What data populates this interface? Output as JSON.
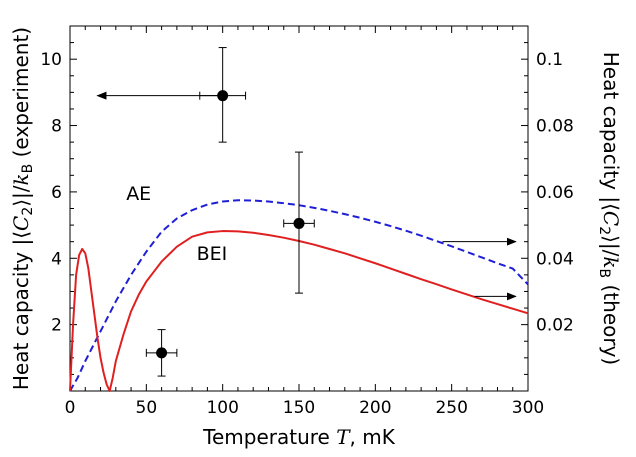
{
  "chart_data": {
    "type": "scatter",
    "xlabel": {
      "main": "Temperature ",
      "var": "T",
      "unit": ", mK"
    },
    "ylabel_left": {
      "pre": "Heat capacity |⟨",
      "var": "C",
      "sub2": "2",
      "mid": "⟩|/",
      "k": "k",
      "subB": "B",
      "post": " (experiment)"
    },
    "ylabel_right": {
      "pre": "Heat capacity |⟨",
      "var": "C",
      "sub2": "2",
      "mid": "⟩|/",
      "k": "k",
      "subB": "B",
      "post": " (theory)"
    },
    "xlim": [
      0,
      300
    ],
    "ylim_left": [
      0,
      11
    ],
    "ylim_right": [
      0,
      0.11
    ],
    "x_ticks": [
      0,
      50,
      100,
      150,
      200,
      250,
      300
    ],
    "y_left_ticks": [
      2,
      4,
      6,
      8,
      10
    ],
    "y_right_ticks": [
      0.02,
      0.04,
      0.06,
      0.08,
      0.1
    ],
    "y_right_tick_labels": [
      "0.02",
      "0.04",
      "0.06",
      "0.08",
      "0.1"
    ],
    "grid": false,
    "experiment": {
      "axis": "left",
      "points": [
        {
          "x": 60,
          "y": 1.15,
          "xerr": 10,
          "yerr_low": 0.7,
          "yerr_high": 0.7
        },
        {
          "x": 100,
          "y": 8.9,
          "xerr": 15,
          "yerr_low": 1.4,
          "yerr_high": 1.45
        },
        {
          "x": 150,
          "y": 5.05,
          "xerr": 10,
          "yerr_low": 2.1,
          "yerr_high": 2.15
        }
      ]
    },
    "series": [
      {
        "label": "AE",
        "axis": "right",
        "style": "dashed",
        "color": "#1f1fd6",
        "x": [
          0,
          5,
          10,
          20,
          30,
          40,
          50,
          60,
          70,
          80,
          90,
          100,
          110,
          120,
          130,
          140,
          150,
          160,
          170,
          180,
          190,
          200,
          210,
          220,
          230,
          240,
          250,
          260,
          270,
          280,
          290,
          300
        ],
        "y": [
          0.0,
          0.004,
          0.009,
          0.018,
          0.027,
          0.035,
          0.042,
          0.048,
          0.052,
          0.0545,
          0.0562,
          0.0571,
          0.0575,
          0.0574,
          0.0571,
          0.0566,
          0.056,
          0.0552,
          0.0543,
          0.0533,
          0.0522,
          0.051,
          0.0497,
          0.0483,
          0.0468,
          0.0452,
          0.0436,
          0.0419,
          0.0402,
          0.0385,
          0.0369,
          0.0321
        ]
      },
      {
        "label": "BEI",
        "axis": "right",
        "style": "solid",
        "color": "#e02020",
        "x": [
          0,
          2,
          4,
          6,
          8,
          10,
          12,
          14,
          16,
          18,
          20,
          22,
          24,
          26,
          28,
          30,
          35,
          40,
          45,
          50,
          55,
          60,
          70,
          80,
          90,
          100,
          110,
          120,
          130,
          140,
          150,
          160,
          170,
          180,
          190,
          200,
          210,
          220,
          230,
          240,
          250,
          260,
          270,
          280,
          290,
          300
        ],
        "y": [
          0.0,
          0.02,
          0.035,
          0.041,
          0.0428,
          0.0415,
          0.037,
          0.03,
          0.023,
          0.016,
          0.01,
          0.0055,
          0.002,
          0.0,
          0.004,
          0.009,
          0.017,
          0.024,
          0.029,
          0.033,
          0.036,
          0.039,
          0.0435,
          0.0465,
          0.0478,
          0.0482,
          0.0481,
          0.0477,
          0.047,
          0.0462,
          0.0452,
          0.0441,
          0.0428,
          0.0415,
          0.04,
          0.0385,
          0.0369,
          0.0353,
          0.0337,
          0.0322,
          0.0306,
          0.0291,
          0.0276,
          0.0262,
          0.0248,
          0.0234
        ]
      }
    ],
    "arrows": [
      {
        "axis": "left",
        "from_x": 100,
        "to_x": 18,
        "y": 8.9,
        "direction": "left"
      },
      {
        "axis": "right",
        "from_x": 244,
        "to_x": 292,
        "y": 0.045,
        "direction": "right"
      },
      {
        "axis": "right",
        "from_x": 265,
        "to_x": 292,
        "y": 0.0285,
        "direction": "right"
      }
    ]
  }
}
